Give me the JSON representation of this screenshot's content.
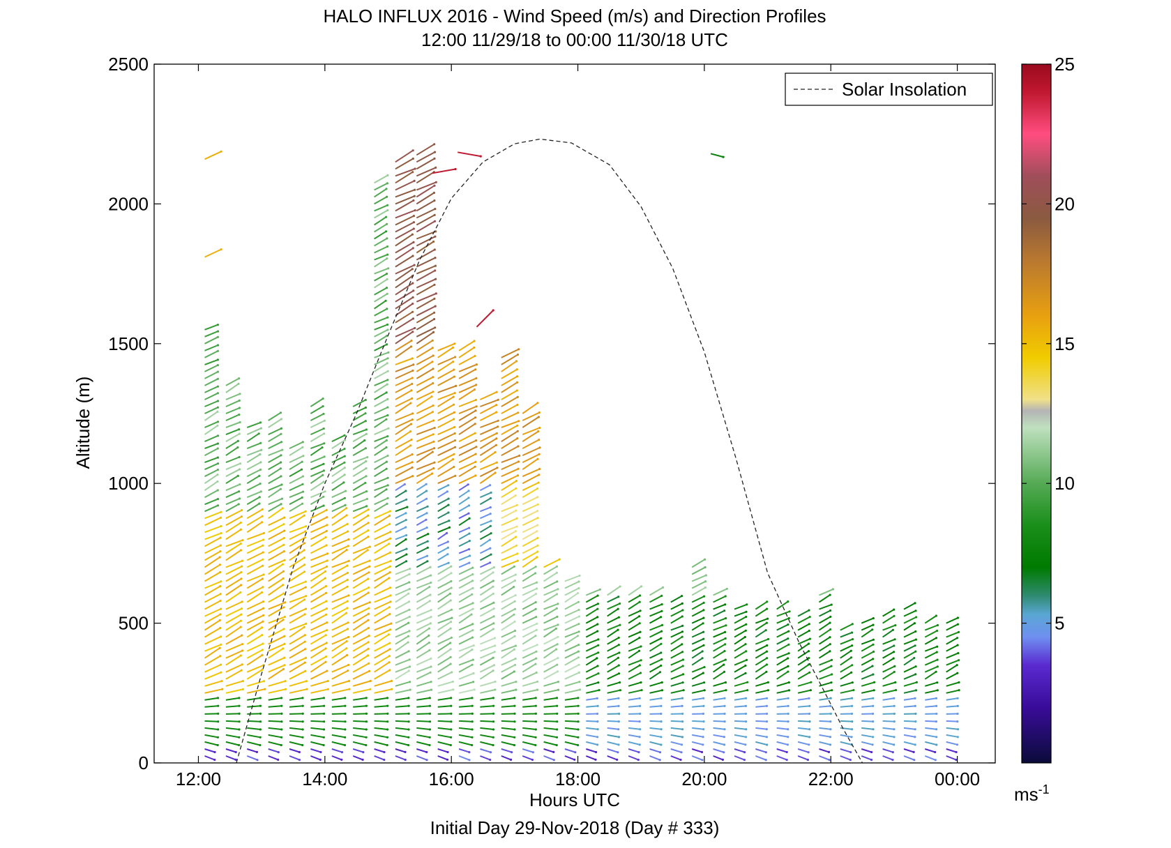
{
  "chart_data": {
    "type": "quiver",
    "title": "HALO INFLUX 2016 - Wind Speed (m/s) and Direction Profiles",
    "subtitle": "12:00 11/29/18 to 00:00 11/30/18  UTC",
    "xlabel": "Hours UTC",
    "xlabel2": "Initial Day 29-Nov-2018 (Day # 333)",
    "ylabel": "Altitude (m)",
    "xlim": [
      11.3,
      24.6
    ],
    "ylim": [
      0,
      2500
    ],
    "xticks": [
      12,
      14,
      16,
      18,
      20,
      22,
      24
    ],
    "xtick_labels": [
      "12:00",
      "14:00",
      "16:00",
      "18:00",
      "20:00",
      "22:00",
      "00:00"
    ],
    "yticks": [
      0,
      500,
      1000,
      1500,
      2000,
      2500
    ],
    "ytick_labels": [
      "0",
      "500",
      "1000",
      "1500",
      "2000",
      "2500"
    ],
    "legend": {
      "label": "Solar Insolation",
      "position": "top-right",
      "style": "dashed"
    },
    "colorbar": {
      "range": [
        0,
        25
      ],
      "ticks": [
        5,
        10,
        15,
        20,
        25
      ],
      "tick_labels": [
        "5",
        "10",
        "15",
        "20",
        "25"
      ],
      "unit_base": "ms",
      "unit_exp": "-1",
      "stops": [
        {
          "v": 0,
          "c": "#0b0b3a"
        },
        {
          "v": 2,
          "c": "#3a0c9a"
        },
        {
          "v": 3.5,
          "c": "#5a2ad0"
        },
        {
          "v": 4.5,
          "c": "#6f8ff0"
        },
        {
          "v": 5.3,
          "c": "#5aa6d4"
        },
        {
          "v": 6,
          "c": "#2e8a6e"
        },
        {
          "v": 7,
          "c": "#007a00"
        },
        {
          "v": 8.5,
          "c": "#1a8f1a"
        },
        {
          "v": 10,
          "c": "#55aa55"
        },
        {
          "v": 12,
          "c": "#bfe0bf"
        },
        {
          "v": 12.6,
          "c": "#b4b4b4"
        },
        {
          "v": 13,
          "c": "#f0e08a"
        },
        {
          "v": 14.5,
          "c": "#f0cc00"
        },
        {
          "v": 16,
          "c": "#e8a010"
        },
        {
          "v": 18,
          "c": "#b87830"
        },
        {
          "v": 19.5,
          "c": "#8a5a40"
        },
        {
          "v": 21,
          "c": "#a04e5a"
        },
        {
          "v": 22.5,
          "c": "#ff4d80"
        },
        {
          "v": 24,
          "c": "#c01830"
        },
        {
          "v": 25,
          "c": "#9a0a1e"
        }
      ]
    },
    "solar_insolation": {
      "x": [
        12.6,
        13.0,
        13.5,
        14.0,
        14.5,
        15.0,
        15.5,
        16.0,
        16.5,
        17.0,
        17.4,
        17.9,
        18.5,
        19.0,
        19.5,
        20.0,
        20.5,
        21.0,
        21.5,
        22.0,
        22.2,
        22.5
      ],
      "y": [
        0,
        320,
        700,
        1000,
        1250,
        1530,
        1800,
        2020,
        2150,
        2215,
        2232,
        2218,
        2140,
        1990,
        1770,
        1470,
        1090,
        680,
        430,
        210,
        120,
        0
      ]
    },
    "wind": {
      "profile_start_hour": 12.1,
      "profile_step_hours": 0.335,
      "profile_count": 36,
      "altitude_step_m": 25,
      "direction_deg_range": [
        -25,
        60
      ],
      "profile_tops_m": [
        1560,
        1370,
        1200,
        1240,
        1130,
        1280,
        1160,
        1280,
        2090,
        2160,
        2190,
        1490,
        1490,
        1320,
        1450,
        1250,
        700,
        670,
        620,
        600,
        600,
        600,
        590,
        700,
        600,
        570,
        560,
        550,
        540,
        620,
        480,
        520,
        540,
        550,
        500,
        500
      ],
      "isolated_vectors": [
        {
          "t": 12.1,
          "alt": 2160,
          "spd": 15.5,
          "dir": 25
        },
        {
          "t": 12.1,
          "alt": 1810,
          "spd": 15.5,
          "dir": 25
        },
        {
          "t": 20.1,
          "alt": 2180,
          "spd": 7.5,
          "dir": -15
        },
        {
          "t": 16.4,
          "alt": 1560,
          "spd": 24,
          "dir": 45
        },
        {
          "t": 15.7,
          "alt": 2110,
          "spd": 24,
          "dir": 10
        },
        {
          "t": 16.1,
          "alt": 2185,
          "spd": 24,
          "dir": -10
        }
      ]
    }
  }
}
